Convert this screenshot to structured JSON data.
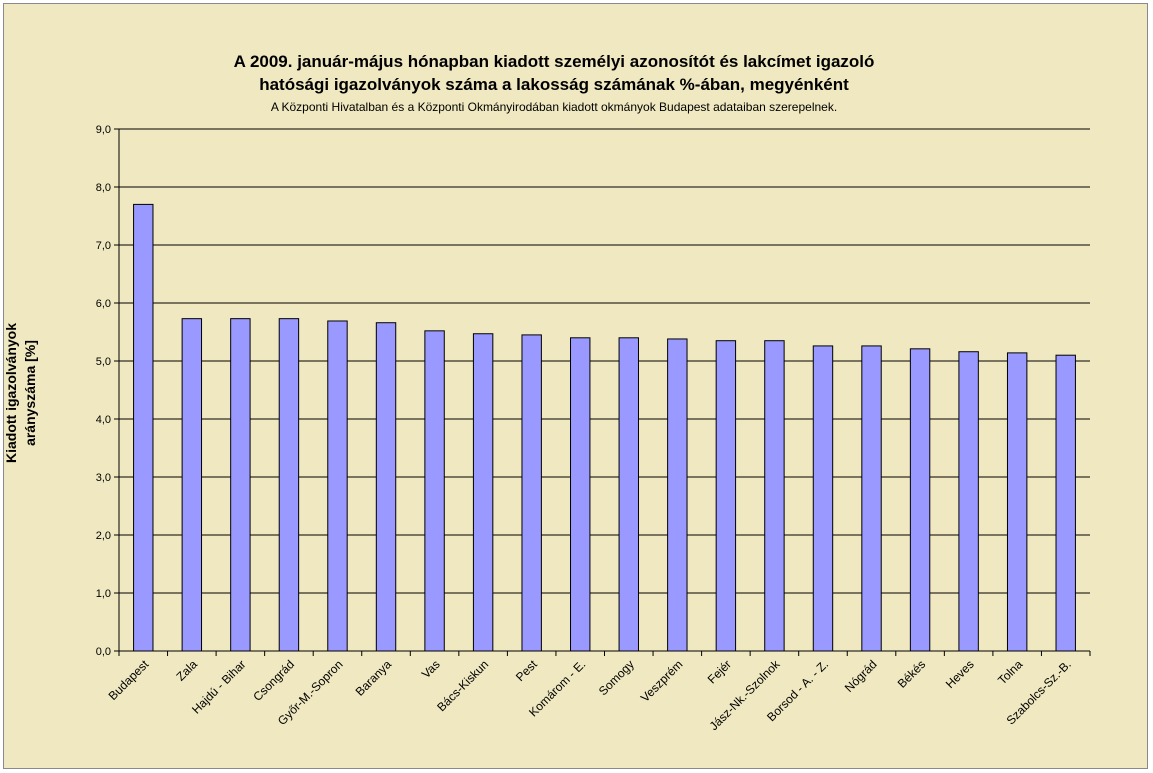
{
  "chart_data": {
    "type": "bar",
    "title_line1": "A 2009. január-május hónapban kiadott személyi azonosítót és lakcímet igazoló",
    "title_line2": "hatósági igazolványok száma a lakosság  számának %-ában, megyénként",
    "subtitle": "A Központi Hivatalban és a Központi Okmányirodában kiadott okmányok Budapest adataiban szerepelnek.",
    "ylabel_line1": "Kiadott igazolványok",
    "ylabel_line2": "arányszáma [%]",
    "xlabel": "",
    "ylim": [
      0,
      9
    ],
    "yticks": [
      "0,0",
      "1,0",
      "2,0",
      "3,0",
      "4,0",
      "5,0",
      "6,0",
      "7,0",
      "8,0",
      "9,0"
    ],
    "grid": true,
    "legend": "none",
    "bar_color": "#9999ff",
    "categories": [
      "Budapest",
      "Zala",
      "Hajdú - Bihar",
      "Csongrád",
      "Győr-M.-Sopron",
      "Baranya",
      "Vas",
      "Bács-Kiskun",
      "Pest",
      "Komárom - E.",
      "Somogy",
      "Veszprém",
      "Fejér",
      "Jász-Nk.-Szolnok",
      "Borsod - A. - Z.",
      "Nógrád",
      "Békés",
      "Heves",
      "Tolna",
      "Szabolcs-Sz.-B."
    ],
    "values": [
      7.7,
      5.73,
      5.73,
      5.73,
      5.69,
      5.66,
      5.52,
      5.47,
      5.45,
      5.4,
      5.4,
      5.38,
      5.35,
      5.35,
      5.26,
      5.26,
      5.21,
      5.16,
      5.14,
      5.1
    ]
  }
}
